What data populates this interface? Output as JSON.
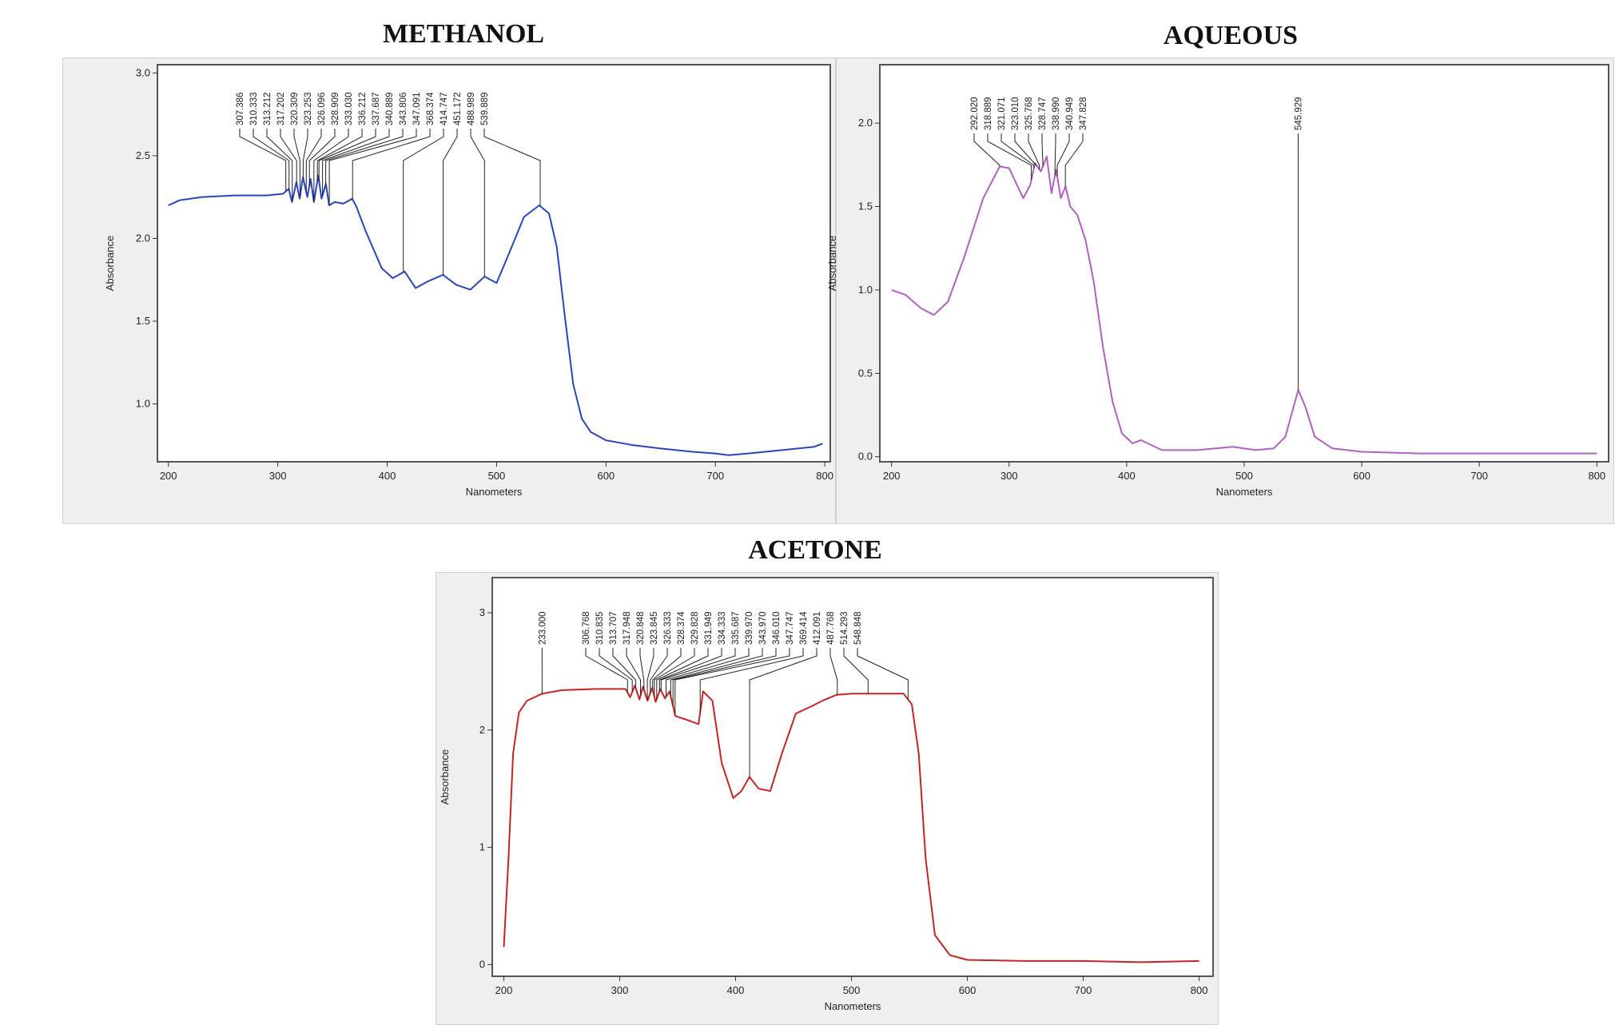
{
  "chart_data": [
    {
      "type": "line",
      "title": "METHANOL",
      "xlabel": "Nanometers",
      "ylabel": "Absorbance",
      "xlim": [
        190,
        805
      ],
      "ylim": [
        0.65,
        3.05
      ],
      "x_ticks": [
        200,
        300,
        400,
        500,
        600,
        700,
        800
      ],
      "y_ticks": [
        1.0,
        1.5,
        2.0,
        2.5,
        3.0
      ],
      "y_tick_labels": [
        "1.0",
        "1.5",
        "2.0",
        "2.5",
        "3.0"
      ],
      "grid": false,
      "line_color": "#2b45b5",
      "series": [
        {
          "x": [
            200,
            210,
            230,
            260,
            290,
            305,
            310,
            313,
            317,
            320,
            323,
            327,
            330,
            333,
            337,
            340,
            344,
            347,
            352,
            360,
            368,
            372,
            380,
            395,
            405,
            416,
            426,
            437,
            451,
            463,
            476,
            489,
            500,
            512,
            525,
            539,
            548,
            555,
            562,
            570,
            578,
            586,
            600,
            625,
            650,
            680,
            700,
            712,
            730,
            760,
            790,
            798
          ],
          "y": [
            2.2,
            2.23,
            2.25,
            2.26,
            2.26,
            2.27,
            2.3,
            2.22,
            2.34,
            2.24,
            2.37,
            2.25,
            2.36,
            2.22,
            2.38,
            2.24,
            2.33,
            2.2,
            2.22,
            2.21,
            2.24,
            2.19,
            2.05,
            1.82,
            1.76,
            1.8,
            1.7,
            1.74,
            1.78,
            1.72,
            1.69,
            1.77,
            1.73,
            1.92,
            2.13,
            2.2,
            2.15,
            1.95,
            1.55,
            1.12,
            0.91,
            0.83,
            0.78,
            0.75,
            0.73,
            0.71,
            0.7,
            0.69,
            0.7,
            0.72,
            0.74,
            0.76
          ]
        }
      ],
      "peaks": [
        {
          "label": "307.386",
          "x": 307.386
        },
        {
          "label": "310.333",
          "x": 310.333
        },
        {
          "label": "313.212",
          "x": 313.212
        },
        {
          "label": "317.202",
          "x": 317.202
        },
        {
          "label": "320.309",
          "x": 320.309
        },
        {
          "label": "323.253",
          "x": 323.253
        },
        {
          "label": "326.096",
          "x": 326.096
        },
        {
          "label": "328.909",
          "x": 328.909
        },
        {
          "label": "333.030",
          "x": 333.03
        },
        {
          "label": "336.212",
          "x": 336.212
        },
        {
          "label": "337.687",
          "x": 337.687
        },
        {
          "label": "340.889",
          "x": 340.889
        },
        {
          "label": "343.806",
          "x": 343.806
        },
        {
          "label": "347.091",
          "x": 347.091
        },
        {
          "label": "368.374",
          "x": 368.374
        },
        {
          "label": "414.747",
          "x": 414.747
        },
        {
          "label": "451.172",
          "x": 451.172
        },
        {
          "label": "488.989",
          "x": 488.989
        },
        {
          "label": "539.889",
          "x": 539.889
        }
      ]
    },
    {
      "type": "line",
      "title": "AQUEOUS",
      "xlabel": "Nanometers",
      "ylabel": "Absorbance",
      "xlim": [
        190,
        810
      ],
      "ylim": [
        -0.03,
        2.35
      ],
      "x_ticks": [
        200,
        300,
        400,
        500,
        600,
        700,
        800
      ],
      "y_ticks": [
        0.0,
        0.5,
        1.0,
        1.5,
        2.0
      ],
      "y_tick_labels": [
        "0.0",
        "0.5",
        "1.0",
        "1.5",
        "2.0"
      ],
      "grid": false,
      "line_color": "#b060c0",
      "series": [
        {
          "x": [
            200,
            212,
            225,
            236,
            248,
            262,
            278,
            292,
            300,
            306,
            312,
            318,
            322,
            327,
            332,
            336,
            340,
            344,
            348,
            352,
            358,
            365,
            372,
            380,
            388,
            396,
            405,
            412,
            430,
            460,
            490,
            510,
            525,
            535,
            542,
            546,
            552,
            560,
            575,
            600,
            650,
            700,
            760,
            800
          ],
          "y": [
            1.0,
            0.97,
            0.89,
            0.85,
            0.93,
            1.2,
            1.55,
            1.74,
            1.73,
            1.64,
            1.55,
            1.63,
            1.76,
            1.71,
            1.8,
            1.58,
            1.72,
            1.55,
            1.62,
            1.5,
            1.45,
            1.3,
            1.05,
            0.65,
            0.33,
            0.14,
            0.08,
            0.1,
            0.04,
            0.04,
            0.06,
            0.04,
            0.05,
            0.12,
            0.3,
            0.4,
            0.3,
            0.12,
            0.05,
            0.03,
            0.02,
            0.02,
            0.02,
            0.02
          ]
        }
      ],
      "peaks": [
        {
          "label": "292.020",
          "x": 292.02
        },
        {
          "label": "318.889",
          "x": 318.889
        },
        {
          "label": "321.071",
          "x": 321.071
        },
        {
          "label": "323.010",
          "x": 323.01
        },
        {
          "label": "325.768",
          "x": 325.768
        },
        {
          "label": "328.747",
          "x": 328.747
        },
        {
          "label": "338.990",
          "x": 338.99
        },
        {
          "label": "340.949",
          "x": 340.949
        },
        {
          "label": "347.828",
          "x": 347.828
        },
        {
          "label": "545.929",
          "x": 545.929
        }
      ]
    },
    {
      "type": "line",
      "title": "ACETONE",
      "xlabel": "Nanometers",
      "ylabel": "Absorbance",
      "xlim": [
        190,
        812
      ],
      "ylim": [
        -0.1,
        3.3
      ],
      "x_ticks": [
        200,
        300,
        400,
        500,
        600,
        700,
        800
      ],
      "y_ticks": [
        0,
        1,
        2,
        3
      ],
      "y_tick_labels": [
        "0",
        "1",
        "2",
        "3"
      ],
      "grid": false,
      "line_color": "#c42424",
      "series": [
        {
          "x": [
            200,
            204,
            208,
            213,
            220,
            233,
            250,
            280,
            305,
            309,
            313,
            317,
            320,
            324,
            328,
            331,
            335,
            339,
            343,
            348,
            360,
            368,
            372,
            380,
            388,
            398,
            405,
            412,
            420,
            430,
            440,
            452,
            465,
            475,
            487,
            500,
            514,
            530,
            545,
            552,
            558,
            564,
            572,
            585,
            600,
            650,
            700,
            750,
            800
          ],
          "y": [
            0.15,
            0.9,
            1.8,
            2.15,
            2.25,
            2.31,
            2.34,
            2.35,
            2.35,
            2.28,
            2.38,
            2.26,
            2.37,
            2.25,
            2.36,
            2.24,
            2.35,
            2.27,
            2.33,
            2.12,
            2.08,
            2.05,
            2.33,
            2.25,
            1.72,
            1.42,
            1.48,
            1.6,
            1.5,
            1.48,
            1.8,
            2.14,
            2.2,
            2.25,
            2.3,
            2.31,
            2.31,
            2.31,
            2.31,
            2.22,
            1.8,
            0.9,
            0.25,
            0.08,
            0.04,
            0.03,
            0.03,
            0.02,
            0.03
          ]
        }
      ],
      "peaks": [
        {
          "label": "233.000",
          "x": 233.0
        },
        {
          "label": "306.768",
          "x": 306.768
        },
        {
          "label": "310.835",
          "x": 310.835
        },
        {
          "label": "313.707",
          "x": 313.707
        },
        {
          "label": "317.948",
          "x": 317.948
        },
        {
          "label": "320.848",
          "x": 320.848
        },
        {
          "label": "323.845",
          "x": 323.845
        },
        {
          "label": "326.333",
          "x": 326.333
        },
        {
          "label": "328.374",
          "x": 328.374
        },
        {
          "label": "329.828",
          "x": 329.828
        },
        {
          "label": "331.949",
          "x": 331.949
        },
        {
          "label": "334.333",
          "x": 334.333
        },
        {
          "label": "335.687",
          "x": 335.687
        },
        {
          "label": "339.970",
          "x": 339.97
        },
        {
          "label": "343.970",
          "x": 343.97
        },
        {
          "label": "346.010",
          "x": 346.01
        },
        {
          "label": "347.747",
          "x": 347.747
        },
        {
          "label": "369.414",
          "x": 369.414
        },
        {
          "label": "412.091",
          "x": 412.091
        },
        {
          "label": "487.768",
          "x": 487.768
        },
        {
          "label": "514.293",
          "x": 514.293
        },
        {
          "label": "548.848",
          "x": 548.848
        }
      ]
    }
  ]
}
